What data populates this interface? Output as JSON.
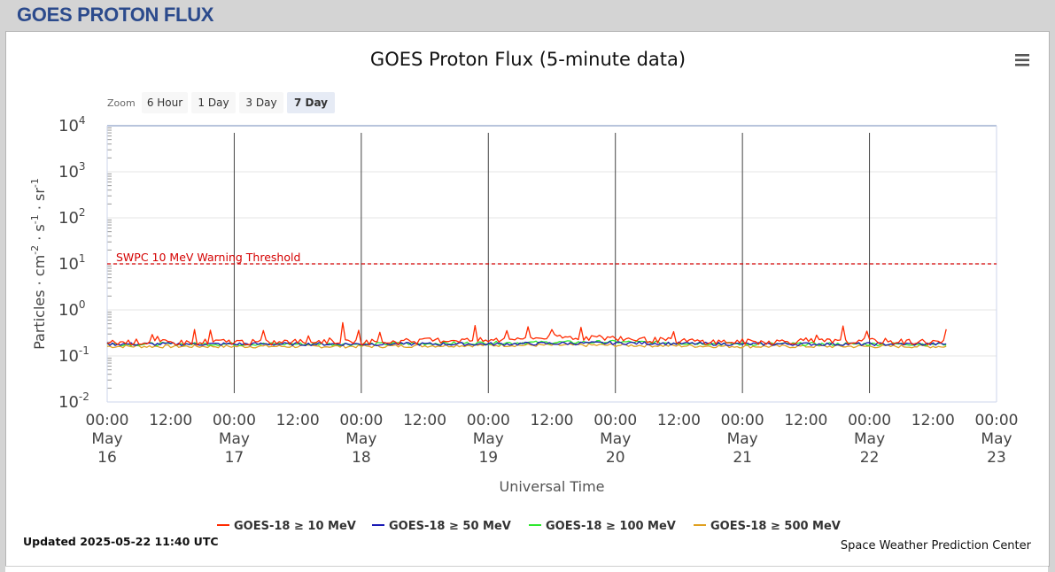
{
  "page": {
    "header_title": "GOES PROTON FLUX"
  },
  "toolbar": {
    "zoom_label": "Zoom",
    "zoom_buttons": [
      {
        "label": "6 Hour",
        "selected": false
      },
      {
        "label": "1 Day",
        "selected": false
      },
      {
        "label": "3 Day",
        "selected": false
      },
      {
        "label": "7 Day",
        "selected": true
      }
    ],
    "menu_icon": "hamburger-menu-icon"
  },
  "footer": {
    "updated": "Updated 2025-05-22 11:40 UTC",
    "credit": "Space Weather Prediction Center"
  },
  "chart_data": {
    "type": "line",
    "title": "GOES Proton Flux (5-minute data)",
    "xlabel": "Universal Time",
    "ylabel_parts": [
      "Particles · cm",
      "-2",
      " · s",
      "-1",
      " · sr",
      "-1"
    ],
    "y_scale": "log",
    "ylim_exponents": [
      -2,
      4
    ],
    "y_ticks": [
      {
        "base": "10",
        "exp": "4"
      },
      {
        "base": "10",
        "exp": "3"
      },
      {
        "base": "10",
        "exp": "2"
      },
      {
        "base": "10",
        "exp": "1"
      },
      {
        "base": "10",
        "exp": "0"
      },
      {
        "base": "10",
        "exp": "-1"
      },
      {
        "base": "10",
        "exp": "-2"
      }
    ],
    "x_ticks": [
      {
        "time": "00:00",
        "month": "May",
        "day": "16"
      },
      {
        "time": "12:00",
        "month": "",
        "day": ""
      },
      {
        "time": "00:00",
        "month": "May",
        "day": "17"
      },
      {
        "time": "12:00",
        "month": "",
        "day": ""
      },
      {
        "time": "00:00",
        "month": "May",
        "day": "18"
      },
      {
        "time": "12:00",
        "month": "",
        "day": ""
      },
      {
        "time": "00:00",
        "month": "May",
        "day": "19"
      },
      {
        "time": "12:00",
        "month": "",
        "day": ""
      },
      {
        "time": "00:00",
        "month": "May",
        "day": "20"
      },
      {
        "time": "12:00",
        "month": "",
        "day": ""
      },
      {
        "time": "00:00",
        "month": "May",
        "day": "21"
      },
      {
        "time": "12:00",
        "month": "",
        "day": ""
      },
      {
        "time": "00:00",
        "month": "May",
        "day": "22"
      },
      {
        "time": "12:00",
        "month": "",
        "day": ""
      },
      {
        "time": "00:00",
        "month": "May",
        "day": "23"
      }
    ],
    "x_range_hours": [
      0,
      168
    ],
    "day_lines_hours": [
      24,
      48,
      72,
      96,
      120,
      144
    ],
    "threshold": {
      "label": "SWPC 10 MeV Warning Threshold",
      "value": 10,
      "color": "#d40000"
    },
    "grid": true,
    "legend_position": "bottom-center",
    "series": [
      {
        "name": "GOES-18 ≥ 10 MeV",
        "color": "#ff2a00",
        "x_hours": [
          0,
          6,
          12,
          18,
          24,
          30,
          36,
          42,
          48,
          54,
          60,
          66,
          72,
          78,
          84,
          90,
          96,
          102,
          108,
          114,
          120,
          126,
          132,
          138,
          144,
          150,
          156,
          158.7
        ],
        "values": [
          0.19,
          0.2,
          0.19,
          0.2,
          0.2,
          0.19,
          0.2,
          0.21,
          0.2,
          0.2,
          0.21,
          0.22,
          0.21,
          0.24,
          0.25,
          0.25,
          0.24,
          0.22,
          0.21,
          0.2,
          0.2,
          0.2,
          0.21,
          0.2,
          0.21,
          0.2,
          0.2,
          0.19
        ]
      },
      {
        "name": "GOES-18 ≥ 50 MeV",
        "color": "#1a1ab5",
        "x_hours": [
          0,
          24,
          48,
          72,
          96,
          120,
          144,
          158.7
        ],
        "values": [
          0.18,
          0.18,
          0.18,
          0.18,
          0.19,
          0.18,
          0.18,
          0.18
        ]
      },
      {
        "name": "GOES-18 ≥ 100 MeV",
        "color": "#2ee82e",
        "x_hours": [
          0,
          24,
          48,
          72,
          96,
          120,
          144,
          158.7
        ],
        "values": [
          0.18,
          0.18,
          0.18,
          0.19,
          0.2,
          0.18,
          0.18,
          0.18
        ]
      },
      {
        "name": "GOES-18 ≥ 500 MeV",
        "color": "#e0a020",
        "x_hours": [
          0,
          24,
          48,
          72,
          96,
          120,
          144,
          158.7
        ],
        "values": [
          0.16,
          0.16,
          0.16,
          0.17,
          0.17,
          0.16,
          0.16,
          0.16
        ]
      }
    ]
  }
}
